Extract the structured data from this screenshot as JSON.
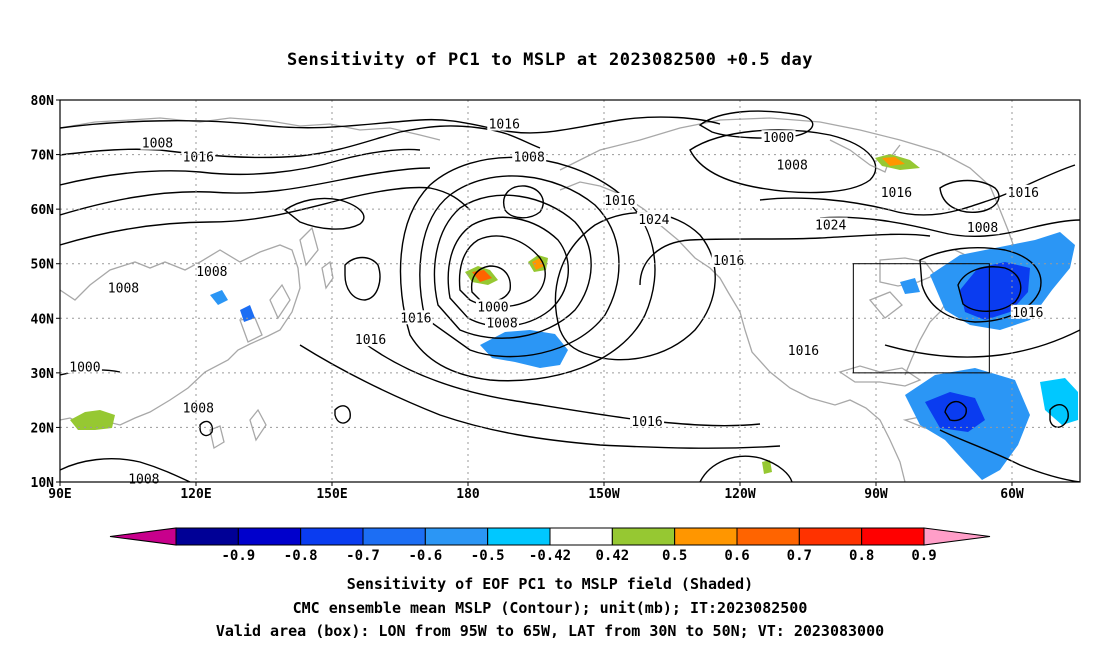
{
  "title": "Sensitivity of PC1 to MSLP at 2023082500 +0.5 day",
  "map": {
    "lat_labels": [
      "80N",
      "70N",
      "60N",
      "50N",
      "40N",
      "30N",
      "20N",
      "10N"
    ],
    "lon_labels": [
      "90E",
      "120E",
      "150E",
      "180",
      "150W",
      "120W",
      "90W",
      "60W"
    ],
    "contour_labels": [
      {
        "text": "1016",
        "lon": 188.0,
        "lat": 75.5
      },
      {
        "text": "1008",
        "lon": 111.5,
        "lat": 72.0
      },
      {
        "text": "1016",
        "lon": 120.5,
        "lat": 69.5
      },
      {
        "text": "1000",
        "lon": 248.5,
        "lat": 73.0
      },
      {
        "text": "1008",
        "lon": 193.5,
        "lat": 69.5
      },
      {
        "text": "1008",
        "lon": 251.5,
        "lat": 68.0
      },
      {
        "text": "1016",
        "lon": 213.5,
        "lat": 61.5
      },
      {
        "text": "1024",
        "lon": 221.0,
        "lat": 58.0
      },
      {
        "text": "1016",
        "lon": 274.5,
        "lat": 63.0
      },
      {
        "text": "1024",
        "lon": 260.0,
        "lat": 57.0
      },
      {
        "text": "1016",
        "lon": 302.5,
        "lat": 63.0
      },
      {
        "text": "1008",
        "lon": 293.5,
        "lat": 56.5
      },
      {
        "text": "1008",
        "lon": 104.0,
        "lat": 45.5
      },
      {
        "text": "1008",
        "lon": 123.5,
        "lat": 48.5
      },
      {
        "text": "1016",
        "lon": 237.5,
        "lat": 50.5
      },
      {
        "text": "1016",
        "lon": 303.5,
        "lat": 41.0
      },
      {
        "text": "1016",
        "lon": 168.5,
        "lat": 40.0
      },
      {
        "text": "1016",
        "lon": 158.5,
        "lat": 36.0
      },
      {
        "text": "1000",
        "lon": 185.5,
        "lat": 42.0
      },
      {
        "text": "1008",
        "lon": 187.5,
        "lat": 39.0
      },
      {
        "text": "1016",
        "lon": 254.0,
        "lat": 34.0
      },
      {
        "text": "1000",
        "lon": 95.5,
        "lat": 31.0
      },
      {
        "text": "1008",
        "lon": 120.5,
        "lat": 23.5
      },
      {
        "text": "1016",
        "lon": 219.5,
        "lat": 21.0
      },
      {
        "text": "1008",
        "lon": 108.5,
        "lat": 10.5
      }
    ],
    "valid_box": {
      "lon_min": 265,
      "lon_max": 295,
      "lat_min": 30,
      "lat_max": 50
    }
  },
  "colorbar": {
    "colors": [
      "#c8008c",
      "#000096",
      "#0000cc",
      "#0a3cf0",
      "#1c6ef4",
      "#2b96f5",
      "#00c8ff",
      "#ffffff",
      "#96c832",
      "#ff9600",
      "#ff6400",
      "#ff3200",
      "#ff0000",
      "#ff9ec8"
    ],
    "labels": [
      "-0.9",
      "-0.8",
      "-0.7",
      "-0.6",
      "-0.5",
      "-0.42",
      "0.42",
      "0.5",
      "0.6",
      "0.7",
      "0.8",
      "0.9"
    ]
  },
  "captions": {
    "line1": "Sensitivity of EOF PC1 to MSLP field (Shaded)",
    "line2": "CMC ensemble mean MSLP (Contour); unit(mb); IT:2023082500",
    "line3": "Valid area (box): LON from 95W to 65W, LAT from 30N to 50N; VT: 2023083000"
  }
}
